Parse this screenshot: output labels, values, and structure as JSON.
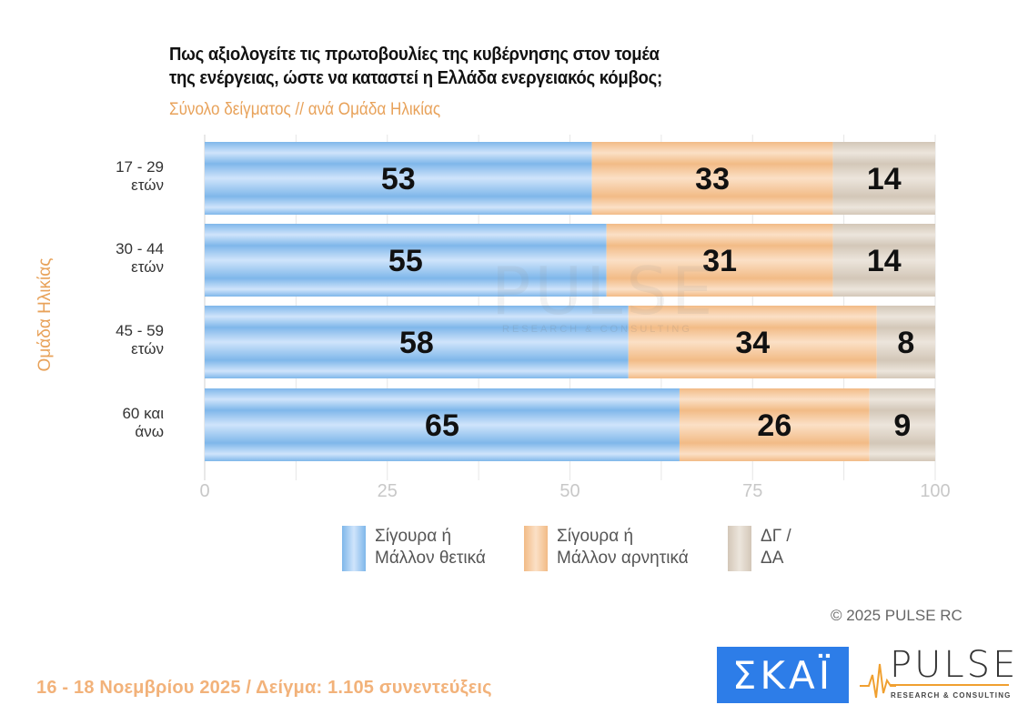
{
  "header": {
    "title_line1": "Πως αξιολογείτε τις πρωτοβουλίες της κυβέρνησης στον τομέα",
    "title_line2": "της ενέργειας, ώστε να καταστεί η Ελλάδα ενεργειακός κόμβος;",
    "subtitle": "Σύνολο δείγματος // ανά Ομάδα Ηλικίας"
  },
  "chart_data": {
    "type": "bar",
    "orientation": "horizontal",
    "stacked": true,
    "title": "Πως αξιολογείτε τις πρωτοβουλίες της κυβέρνησης στον τομέα της ενέργειας, ώστε να καταστεί η Ελλάδα ενεργειακός κόμβος;",
    "subtitle": "Σύνολο δείγματος // ανά Ομάδα Ηλικίας",
    "ylabel": "Ομάδα Ηλικίας",
    "xlabel": "",
    "categories": [
      {
        "line1": "17 - 29",
        "line2": "ετών"
      },
      {
        "line1": "30 - 44",
        "line2": "ετών"
      },
      {
        "line1": "45 - 59",
        "line2": "ετών"
      },
      {
        "line1": "60 και",
        "line2": "άνω"
      }
    ],
    "series": [
      {
        "name": "Σίγουρα ή Μάλλον θετικά",
        "legend_line1": "Σίγουρα ή",
        "legend_line2": "Μάλλον θετικά",
        "color": "#7fb7ea",
        "color_light": "#cfe4fb",
        "values": [
          53,
          55,
          58,
          65
        ]
      },
      {
        "name": "Σίγουρα ή Μάλλον αρνητικά",
        "legend_line1": "Σίγουρα ή",
        "legend_line2": "Μάλλον αρνητικά",
        "color": "#f2bb86",
        "color_light": "#fbe0c6",
        "values": [
          33,
          31,
          34,
          26
        ]
      },
      {
        "name": "ΔΓ / ΔΑ",
        "legend_line1": "ΔΓ /",
        "legend_line2": "ΔΑ",
        "color": "#d3c7b8",
        "color_light": "#ece5dc",
        "values": [
          14,
          14,
          8,
          9
        ]
      }
    ],
    "xlim": [
      0,
      100
    ],
    "x_ticks": [
      0,
      25,
      50,
      75,
      100
    ],
    "minor_gridlines_step": 12.5,
    "grid": true,
    "legend_position": "bottom"
  },
  "footer": {
    "copyright": "©  2025  PULSE RC",
    "fieldwork": "16 - 18 Νοεμβρίου 2025  /  Δείγμα:  1.105 συνεντεύξεις"
  },
  "logos": {
    "skai": "ΣΚΑΪ",
    "pulse": "PULSE",
    "pulse_sub": "RESEARCH & CONSULTING"
  },
  "watermark": {
    "text": "PULSE",
    "sub": "RESEARCH & CONSULTING"
  }
}
